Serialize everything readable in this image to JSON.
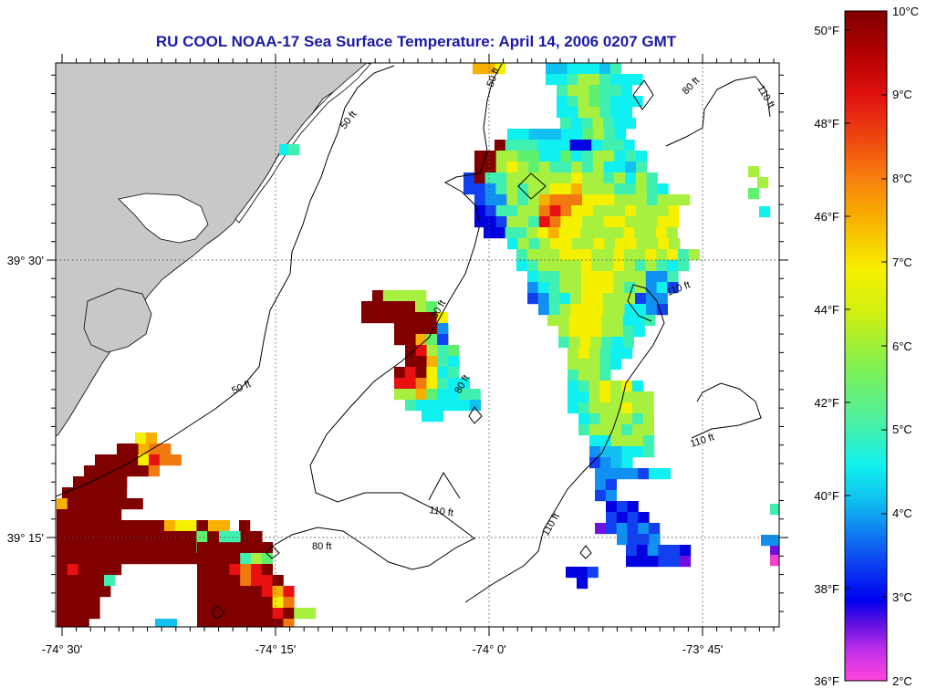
{
  "title": "RU COOL  NOAA-17  Sea Surface Temperature:  April 14, 2006 0207 GMT",
  "title_color": "#1a1aa8",
  "map": {
    "x_ticks": [
      "-74° 30'",
      "-74° 15'",
      "-74° 0'",
      "-73° 45'"
    ],
    "y_ticks": [
      "39° 30'",
      "39° 15'"
    ],
    "contour_labels": [
      "50 ft",
      "50 ft",
      "50 ft",
      "80 ft",
      "80 ft",
      "80 ft",
      "80 ft",
      "110 ft",
      "110 ft",
      "110 ft",
      "110 ft"
    ],
    "land_color": "#c8c8c8",
    "coastline_color": "#000000"
  },
  "colorbar": {
    "fahrenheit_labels": [
      "50°F",
      "48°F",
      "46°F",
      "44°F",
      "42°F",
      "40°F",
      "38°F",
      "36°F"
    ],
    "celsius_labels": [
      "10°C",
      "9°C",
      "8°C",
      "7°C",
      "6°C",
      "5°C",
      "4°C",
      "3°C",
      "2°C"
    ],
    "celsius_range": [
      2,
      10
    ]
  },
  "palette": {
    "maroon": "#800000",
    "red": "#e81010",
    "orange": "#f07a10",
    "amber": "#f8b000",
    "yellow": "#f4f000",
    "lime": "#a8f040",
    "green": "#60f070",
    "mint": "#40f0b0",
    "cyan": "#10f0f0",
    "sky": "#10c0f0",
    "azure": "#1090f0",
    "blue": "#1040f0",
    "navy": "#0000e0",
    "violet": "#7010e0",
    "magenta": "#f040d0"
  }
}
